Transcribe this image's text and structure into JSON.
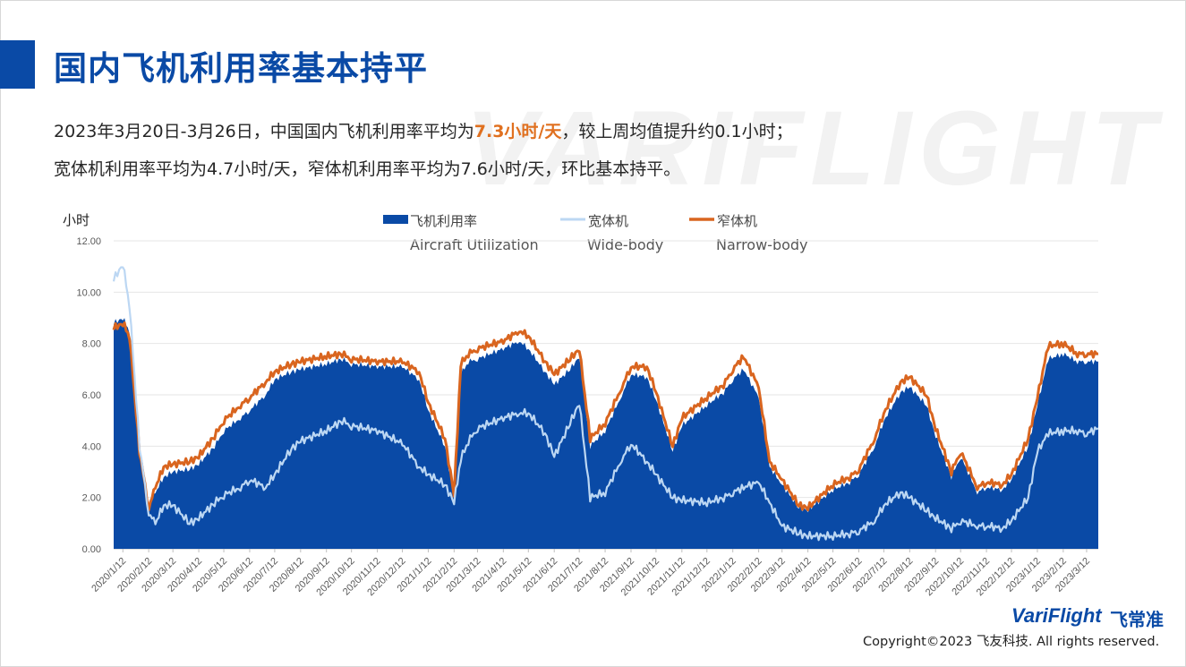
{
  "page": {
    "title": "国内飞机利用率基本持平",
    "watermark": "VARIFLIGHT",
    "summary_line1_a": "2023年3月20日-3月26日，中国国内飞机利用率平均为",
    "summary_line1_highlight": "7.3小时/天",
    "summary_line1_b": "，较上周均值提升约0.1小时；",
    "summary_line2": "宽体机利用率平均为4.7小时/天，窄体机利用率平均为7.6小时/天，环比基本持平。",
    "brand": "VariFlight",
    "brand_cn": "飞常准",
    "copyright": "Copyright©2023 飞友科技. All rights reserved."
  },
  "colors": {
    "brand_blue": "#0a4aa6",
    "aircraft_fill": "#0a4aa6",
    "wide_body": "#bcd7f3",
    "narrow_body": "#d9651f",
    "highlight": "#e0701f"
  },
  "chart_data": {
    "type": "area",
    "ylabel": "小时",
    "ylim": [
      0,
      12
    ],
    "yticks": [
      "0.00",
      "2.00",
      "4.00",
      "6.00",
      "8.00",
      "10.00",
      "12.00"
    ],
    "grid": "horizontal",
    "legend_position": "top",
    "x_tick_labels": [
      "2020/1/12",
      "2020/2/12",
      "2020/3/12",
      "2020/4/12",
      "2020/5/12",
      "2020/6/12",
      "2020/7/12",
      "2020/8/12",
      "2020/9/12",
      "2020/10/12",
      "2020/11/12",
      "2020/12/12",
      "2021/1/12",
      "2021/2/12",
      "2021/3/12",
      "2021/4/12",
      "2021/5/12",
      "2021/6/12",
      "2021/7/12",
      "2021/8/12",
      "2021/9/12",
      "2021/10/12",
      "2021/11/12",
      "2021/12/12",
      "2022/1/12",
      "2022/2/12",
      "2022/3/12",
      "2022/4/12",
      "2022/5/12",
      "2022/6/12",
      "2022/7/12",
      "2022/8/12",
      "2022/9/12",
      "2022/10/12",
      "2022/11/12",
      "2022/12/12",
      "2023/1/12",
      "2023/2/12",
      "2023/3/12"
    ],
    "x": [
      "2020/1/1",
      "2020/1/12",
      "2020/1/20",
      "2020/2/1",
      "2020/2/12",
      "2020/2/20",
      "2020/3/1",
      "2020/3/12",
      "2020/4/1",
      "2020/4/12",
      "2020/5/1",
      "2020/5/12",
      "2020/6/1",
      "2020/6/12",
      "2020/7/1",
      "2020/7/12",
      "2020/8/1",
      "2020/8/12",
      "2020/9/12",
      "2020/10/1",
      "2020/10/12",
      "2020/11/12",
      "2020/12/12",
      "2021/1/1",
      "2021/1/12",
      "2021/2/1",
      "2021/2/12",
      "2021/2/20",
      "2021/3/1",
      "2021/3/12",
      "2021/4/12",
      "2021/5/1",
      "2021/5/12",
      "2021/6/1",
      "2021/6/12",
      "2021/7/1",
      "2021/7/12",
      "2021/7/25",
      "2021/8/12",
      "2021/9/1",
      "2021/9/12",
      "2021/10/1",
      "2021/10/12",
      "2021/11/1",
      "2021/11/12",
      "2021/12/12",
      "2022/1/1",
      "2022/1/12",
      "2022/1/25",
      "2022/2/12",
      "2022/2/25",
      "2022/3/12",
      "2022/4/1",
      "2022/4/12",
      "2022/5/12",
      "2022/6/1",
      "2022/6/12",
      "2022/7/1",
      "2022/7/12",
      "2022/8/1",
      "2022/8/12",
      "2022/9/1",
      "2022/9/12",
      "2022/10/1",
      "2022/10/12",
      "2022/11/1",
      "2022/11/12",
      "2022/12/1",
      "2022/12/12",
      "2023/1/1",
      "2023/1/12",
      "2023/1/25",
      "2023/2/12",
      "2023/3/1",
      "2023/3/12",
      "2023/3/26"
    ],
    "series": [
      {
        "name": "飞机利用率",
        "name_en": "Aircraft Utilization",
        "style": "area",
        "values": [
          8.8,
          9.0,
          8.5,
          4.0,
          1.6,
          2.2,
          2.8,
          3.0,
          3.1,
          3.3,
          4.0,
          4.6,
          5.1,
          5.4,
          6.0,
          6.6,
          6.9,
          7.0,
          7.2,
          7.4,
          7.2,
          7.1,
          7.1,
          6.6,
          5.4,
          4.0,
          2.0,
          6.8,
          7.3,
          7.4,
          7.8,
          8.1,
          7.8,
          6.9,
          6.4,
          7.0,
          7.5,
          4.0,
          4.6,
          6.0,
          6.8,
          6.7,
          5.8,
          3.8,
          4.8,
          5.6,
          6.1,
          6.6,
          7.0,
          5.9,
          3.2,
          2.5,
          1.6,
          1.5,
          2.3,
          2.6,
          2.9,
          4.0,
          5.0,
          6.1,
          6.3,
          5.6,
          4.4,
          2.8,
          3.6,
          2.2,
          2.4,
          2.3,
          2.7,
          4.0,
          5.6,
          7.4,
          7.6,
          7.3,
          7.3,
          7.3
        ]
      },
      {
        "name": "宽体机",
        "name_en": "Wide-body",
        "style": "line",
        "values": [
          10.5,
          11.1,
          9.5,
          4.0,
          1.4,
          1.0,
          1.7,
          1.7,
          1.0,
          1.2,
          1.8,
          2.1,
          2.4,
          2.7,
          2.4,
          2.9,
          3.9,
          4.2,
          4.6,
          5.0,
          4.8,
          4.6,
          4.1,
          3.2,
          2.9,
          2.5,
          1.8,
          3.5,
          4.2,
          4.7,
          5.1,
          5.3,
          5.3,
          4.5,
          3.6,
          4.9,
          5.7,
          2.0,
          2.2,
          3.5,
          4.1,
          3.4,
          2.9,
          2.0,
          1.9,
          1.8,
          2.0,
          2.2,
          2.4,
          2.6,
          1.8,
          0.9,
          0.6,
          0.5,
          0.5,
          0.6,
          0.7,
          1.1,
          1.7,
          2.2,
          2.0,
          1.5,
          1.2,
          0.8,
          1.1,
          0.9,
          0.9,
          0.8,
          1.1,
          2.0,
          3.8,
          4.5,
          4.6,
          4.6,
          4.5,
          4.7
        ]
      },
      {
        "name": "窄体机",
        "name_en": "Narrow-body",
        "style": "line",
        "values": [
          8.6,
          8.8,
          8.3,
          3.8,
          1.6,
          2.4,
          3.2,
          3.3,
          3.4,
          3.6,
          4.4,
          5.0,
          5.6,
          5.9,
          6.5,
          6.9,
          7.2,
          7.3,
          7.5,
          7.6,
          7.4,
          7.3,
          7.3,
          6.9,
          5.7,
          4.3,
          2.1,
          7.2,
          7.6,
          7.8,
          8.1,
          8.5,
          8.3,
          7.3,
          6.8,
          7.4,
          7.8,
          4.3,
          4.9,
          6.3,
          7.1,
          7.1,
          6.1,
          4.0,
          5.1,
          5.9,
          6.4,
          7.0,
          7.5,
          6.3,
          3.4,
          2.7,
          1.7,
          1.6,
          2.5,
          2.8,
          3.1,
          4.3,
          5.3,
          6.5,
          6.7,
          6.0,
          4.7,
          3.0,
          3.8,
          2.4,
          2.6,
          2.5,
          2.9,
          4.3,
          5.9,
          7.9,
          8.0,
          7.6,
          7.6,
          7.6
        ]
      }
    ]
  }
}
